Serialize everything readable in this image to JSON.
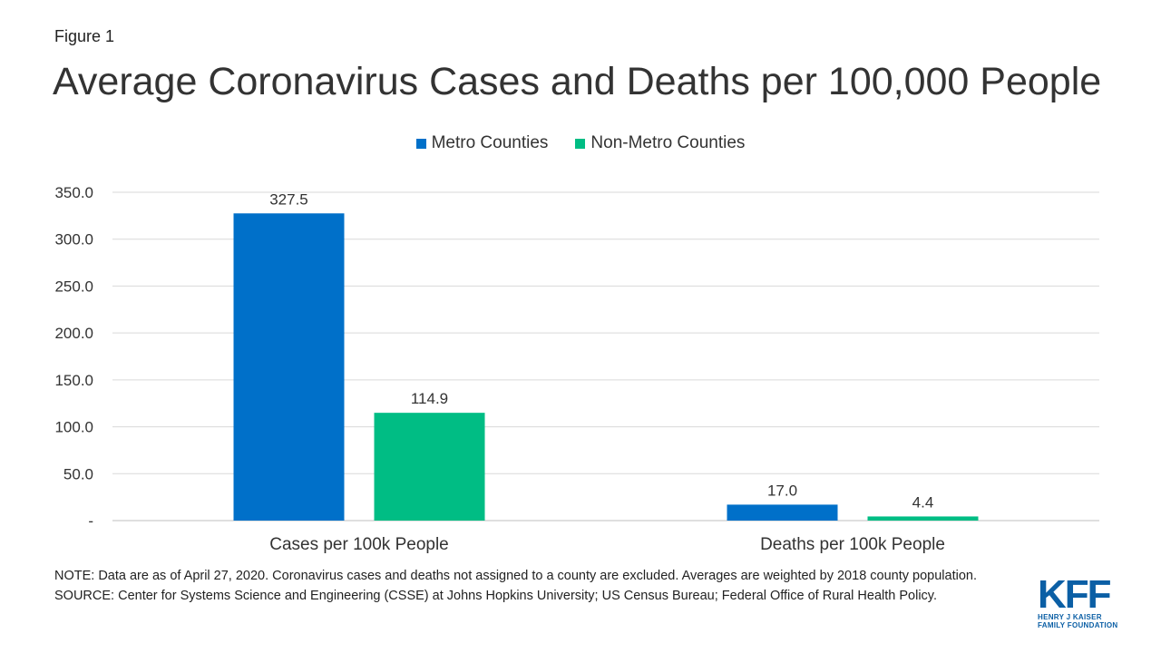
{
  "figure_label": "Figure 1",
  "colors": {
    "metro": "#0070C9",
    "non_metro": "#00BD84",
    "grid": "#D9D9D9",
    "text": "#333333",
    "logo": "#0B5FA5"
  },
  "chart_data": {
    "type": "bar",
    "title": "Average Coronavirus Cases and Deaths per 100,000 People",
    "categories": [
      "Cases per 100k People",
      "Deaths per 100k People"
    ],
    "series": [
      {
        "name": "Metro Counties",
        "values": [
          327.5,
          17.0
        ],
        "labels": [
          "327.5",
          "17.0"
        ]
      },
      {
        "name": "Non-Metro Counties",
        "values": [
          114.9,
          4.4
        ],
        "labels": [
          "114.9",
          "4.4"
        ]
      }
    ],
    "ylim": [
      0,
      350
    ],
    "yticks": [
      0,
      50,
      100,
      150,
      200,
      250,
      300,
      350
    ],
    "ytick_labels": [
      "-",
      "50.0",
      "100.0",
      "150.0",
      "200.0",
      "250.0",
      "300.0",
      "350.0"
    ],
    "xlabel": "",
    "ylabel": "",
    "grid": true,
    "legend": "top-center"
  },
  "notes": {
    "note": "NOTE: Data are as of April 27, 2020. Coronavirus cases and deaths not assigned to a county are excluded. Averages are weighted by 2018 county population.",
    "source": "SOURCE: Center for Systems Science and Engineering (CSSE) at Johns Hopkins University; US Census Bureau; Federal Office of Rural Health Policy."
  },
  "logo": {
    "mark": "KFF",
    "line1": "HENRY J KAISER",
    "line2": "FAMILY FOUNDATION"
  }
}
